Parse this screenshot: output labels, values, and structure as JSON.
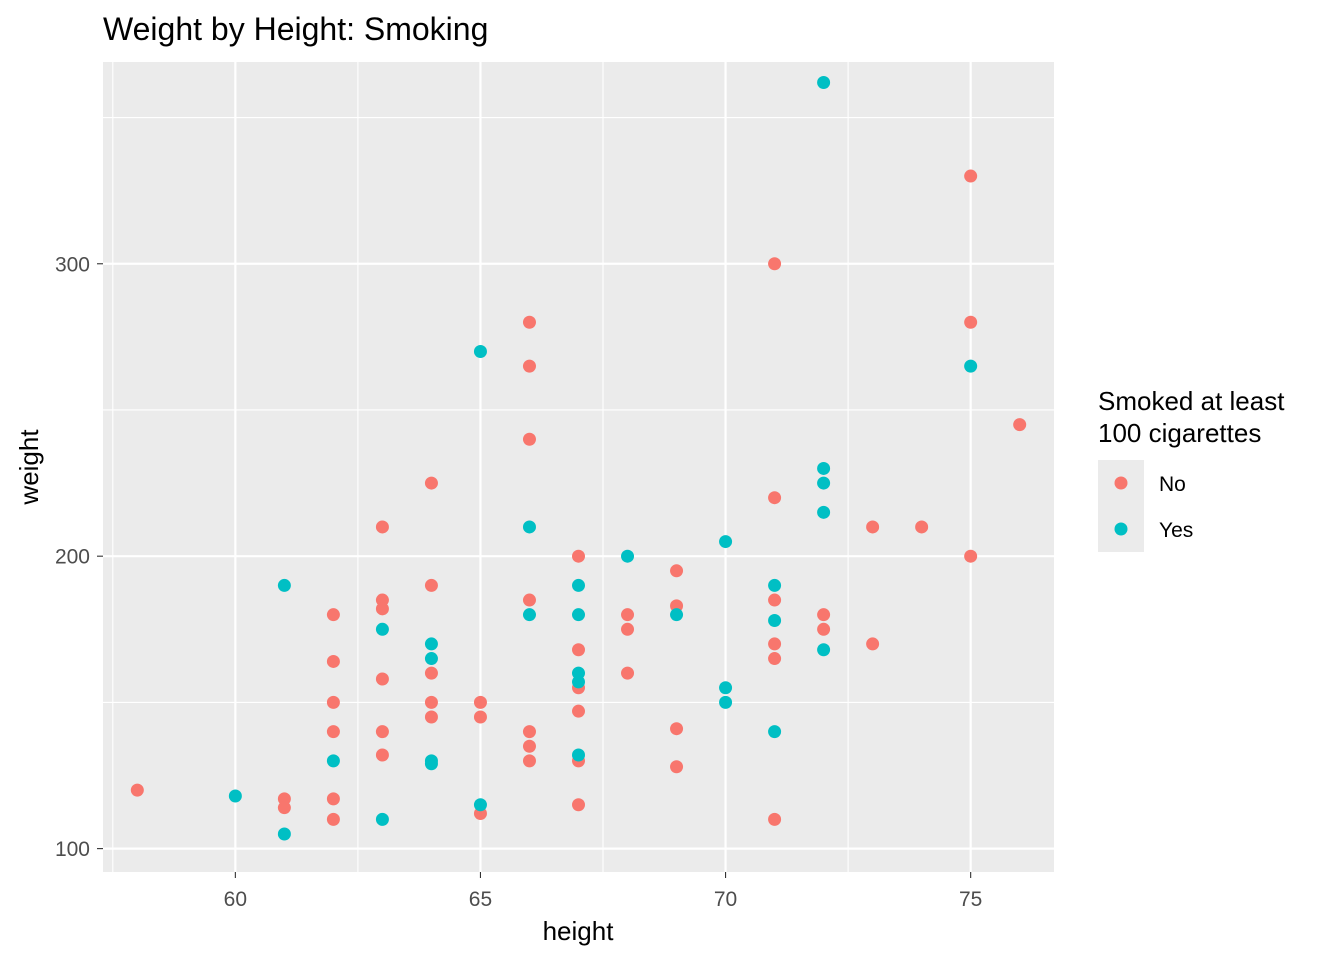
{
  "chart_data": {
    "type": "scatter",
    "title": "Weight by Height: Smoking",
    "xlabel": "height",
    "ylabel": "weight",
    "xlim": [
      57.3,
      76.7
    ],
    "ylim": [
      92,
      369
    ],
    "x_ticks": [
      60,
      65,
      70,
      75
    ],
    "y_ticks": [
      100,
      200,
      300
    ],
    "x_tick_labels": [
      "60",
      "65",
      "70",
      "75"
    ],
    "y_tick_labels": [
      "100",
      "200",
      "300"
    ],
    "grid": true,
    "panel_background": "#ebebeb",
    "legend": {
      "title_lines": [
        "Smoked at least",
        "100 cigarettes"
      ],
      "placement": "right",
      "entries": [
        {
          "label": "No",
          "color": "#f8766d"
        },
        {
          "label": "Yes",
          "color": "#00bfc4"
        }
      ]
    },
    "series": [
      {
        "name": "No",
        "color": "#f8766d",
        "points": [
          [
            58,
            120
          ],
          [
            61,
            117
          ],
          [
            61,
            114
          ],
          [
            62,
            180
          ],
          [
            62,
            164
          ],
          [
            62,
            150
          ],
          [
            62,
            140
          ],
          [
            62,
            117
          ],
          [
            62,
            110
          ],
          [
            63,
            210
          ],
          [
            63,
            185
          ],
          [
            63,
            182
          ],
          [
            63,
            158
          ],
          [
            63,
            140
          ],
          [
            63,
            132
          ],
          [
            64,
            225
          ],
          [
            64,
            190
          ],
          [
            64,
            160
          ],
          [
            64,
            150
          ],
          [
            64,
            145
          ],
          [
            65,
            150
          ],
          [
            65,
            145
          ],
          [
            65,
            112
          ],
          [
            66,
            280
          ],
          [
            66,
            265
          ],
          [
            66,
            240
          ],
          [
            66,
            185
          ],
          [
            66,
            140
          ],
          [
            66,
            135
          ],
          [
            66,
            130
          ],
          [
            67,
            200
          ],
          [
            67,
            168
          ],
          [
            67,
            155
          ],
          [
            67,
            147
          ],
          [
            67,
            130
          ],
          [
            67,
            115
          ],
          [
            68,
            180
          ],
          [
            68,
            175
          ],
          [
            68,
            160
          ],
          [
            69,
            195
          ],
          [
            69,
            183
          ],
          [
            69,
            141
          ],
          [
            69,
            128
          ],
          [
            71,
            300
          ],
          [
            71,
            220
          ],
          [
            71,
            185
          ],
          [
            71,
            170
          ],
          [
            71,
            165
          ],
          [
            71,
            110
          ],
          [
            72,
            180
          ],
          [
            72,
            175
          ],
          [
            73,
            210
          ],
          [
            73,
            170
          ],
          [
            74,
            210
          ],
          [
            75,
            330
          ],
          [
            75,
            280
          ],
          [
            75,
            200
          ],
          [
            76,
            245
          ]
        ]
      },
      {
        "name": "Yes",
        "color": "#00bfc4",
        "points": [
          [
            60,
            118
          ],
          [
            61,
            190
          ],
          [
            61,
            105
          ],
          [
            62,
            130
          ],
          [
            63,
            175
          ],
          [
            63,
            110
          ],
          [
            64,
            170
          ],
          [
            64,
            165
          ],
          [
            64,
            130
          ],
          [
            64,
            129
          ],
          [
            65,
            270
          ],
          [
            65,
            115
          ],
          [
            66,
            210
          ],
          [
            66,
            180
          ],
          [
            67,
            190
          ],
          [
            67,
            180
          ],
          [
            67,
            160
          ],
          [
            67,
            157
          ],
          [
            67,
            132
          ],
          [
            68,
            200
          ],
          [
            69,
            180
          ],
          [
            70,
            205
          ],
          [
            70,
            155
          ],
          [
            70,
            150
          ],
          [
            71,
            190
          ],
          [
            71,
            178
          ],
          [
            71,
            140
          ],
          [
            72,
            362
          ],
          [
            72,
            230
          ],
          [
            72,
            225
          ],
          [
            72,
            215
          ],
          [
            72,
            168
          ],
          [
            75,
            265
          ]
        ]
      }
    ]
  }
}
